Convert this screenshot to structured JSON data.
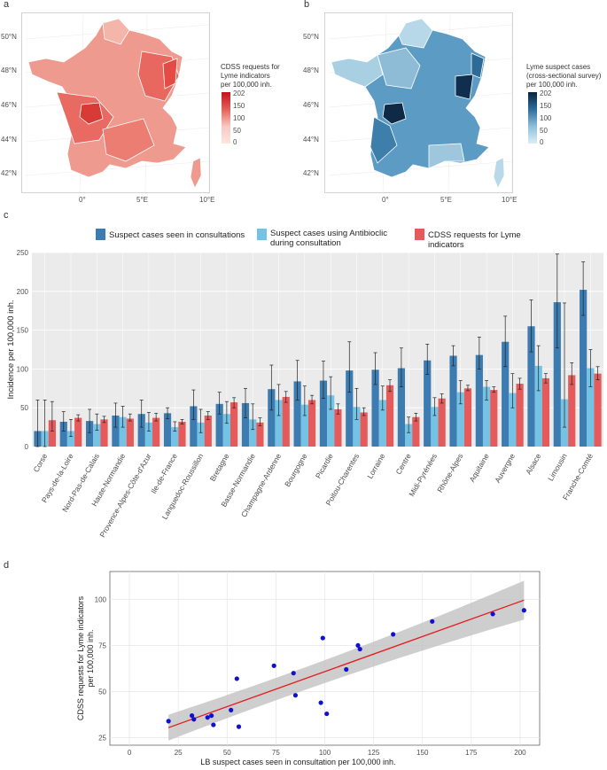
{
  "panels": {
    "a": "a",
    "b": "b",
    "c": "c",
    "d": "d"
  },
  "colors": {
    "consult": "#3d7cb1",
    "antibio": "#74c3e4",
    "cdss": "#e55b5b",
    "reg_line": "#e41a1c",
    "points": "#1010d0",
    "ci_band": "#bdbdbd",
    "panel_bg": "#ebebeb"
  },
  "map_a": {
    "legend_title_1": "CDSS requests for",
    "legend_title_2": "Lyme indicators",
    "legend_title_3": "per 100,000 inh.",
    "legend_ticks": [
      "202",
      "150",
      "100",
      "50",
      "0"
    ],
    "lat_labels": [
      "50°N",
      "48°N",
      "46°N",
      "44°N",
      "42°N"
    ],
    "lon_labels": [
      "0°",
      "5°E",
      "10°E"
    ]
  },
  "map_b": {
    "legend_title_1": "Lyme suspect cases",
    "legend_title_2": "(cross-sectional survey)",
    "legend_title_3": "per 100,000 inh.",
    "legend_ticks": [
      "202",
      "150",
      "100",
      "50",
      "0"
    ],
    "lat_labels": [
      "50°N",
      "48°N",
      "46°N",
      "44°N",
      "42°N"
    ],
    "lon_labels": [
      "0°",
      "5°E",
      "10°E"
    ]
  },
  "legend_c": {
    "consult": "Suspect cases seen in consultations",
    "antibio_1": "Suspect cases using Antibioclic",
    "antibio_2": "during consultation",
    "cdss": "CDSS requests for Lyme indicators"
  },
  "chart_data": [
    {
      "type": "bar",
      "ylabel": "Incidence per 100,000 inh.",
      "ylim": [
        0,
        250
      ],
      "yticks": [
        0,
        50,
        100,
        150,
        200,
        250
      ],
      "categories": [
        "Corse",
        "Pays-de-la-Loire",
        "Nord-Pas-de-Calais",
        "Haute-Normandie",
        "Provence-Alpes-Côte-d'Azur",
        "Ile-de-France",
        "Languedoc-Roussillon",
        "Bretagne",
        "Basse-Normandie",
        "Champagne-Ardenne",
        "Bourgogne",
        "Picardie",
        "Poitou-Charentes",
        "Lorraine",
        "Centre",
        "Midi-Pyrénées",
        "Rhône-Alpes",
        "Aquitaine",
        "Auvergne",
        "Alsace",
        "Limousin",
        "Franche-Comté"
      ],
      "series": [
        {
          "name": "Suspect cases seen in consultations",
          "values": [
            20,
            32,
            33,
            40,
            42,
            43,
            52,
            55,
            56,
            74,
            84,
            85,
            98,
            99,
            101,
            111,
            117,
            118,
            135,
            155,
            186,
            202
          ],
          "lower": [
            0,
            20,
            18,
            25,
            25,
            36,
            35,
            42,
            37,
            47,
            60,
            62,
            70,
            80,
            77,
            93,
            104,
            100,
            103,
            122,
            127,
            169
          ],
          "upper": [
            60,
            45,
            48,
            56,
            60,
            50,
            73,
            70,
            75,
            105,
            111,
            110,
            135,
            121,
            127,
            132,
            130,
            141,
            168,
            189,
            248,
            238
          ]
        },
        {
          "name": "Suspect cases using Antibioclic during consultation",
          "values": [
            20,
            20,
            29,
            38,
            31,
            25,
            31,
            42,
            35,
            60,
            54,
            66,
            51,
            60,
            29,
            51,
            70,
            77,
            69,
            104,
            61,
            101
          ],
          "lower": [
            0,
            13,
            21,
            25,
            20,
            20,
            18,
            30,
            22,
            40,
            40,
            48,
            35,
            47,
            18,
            40,
            55,
            60,
            50,
            72,
            25,
            77
          ],
          "upper": [
            60,
            35,
            42,
            52,
            44,
            32,
            48,
            58,
            55,
            80,
            78,
            90,
            75,
            78,
            38,
            63,
            85,
            85,
            94,
            130,
            185,
            125
          ]
        },
        {
          "name": "CDSS requests for Lyme indicators",
          "values": [
            34,
            37,
            35,
            36,
            37,
            32,
            40,
            57,
            31,
            64,
            60,
            48,
            44,
            79,
            38,
            62,
            75,
            73,
            81,
            88,
            92,
            94
          ],
          "lower": [
            20,
            33,
            31,
            33,
            33,
            29,
            35,
            50,
            27,
            57,
            55,
            42,
            40,
            71,
            33,
            56,
            72,
            70,
            74,
            82,
            80,
            86
          ],
          "upper": [
            58,
            41,
            39,
            42,
            43,
            35,
            45,
            63,
            37,
            71,
            66,
            55,
            50,
            86,
            43,
            68,
            79,
            77,
            88,
            94,
            108,
            103
          ]
        }
      ]
    },
    {
      "type": "scatter",
      "xlabel": "LB suspect cases seen in consultation per 100,000 inh.",
      "ylabel_1": "CDSS requests for Lyme indicators",
      "ylabel_2": "per 100,000 inh.",
      "xlim": [
        -10,
        210
      ],
      "ylim": [
        21,
        115
      ],
      "xticks": [
        0,
        25,
        50,
        75,
        100,
        125,
        150,
        175,
        200
      ],
      "yticks": [
        25,
        50,
        75,
        100
      ],
      "points": [
        [
          20,
          34
        ],
        [
          32,
          37
        ],
        [
          33,
          35
        ],
        [
          40,
          36
        ],
        [
          42,
          37
        ],
        [
          43,
          32
        ],
        [
          52,
          40
        ],
        [
          55,
          57
        ],
        [
          56,
          31
        ],
        [
          74,
          64
        ],
        [
          84,
          60
        ],
        [
          85,
          48
        ],
        [
          98,
          44
        ],
        [
          99,
          79
        ],
        [
          101,
          38
        ],
        [
          111,
          62
        ],
        [
          117,
          75
        ],
        [
          118,
          73
        ],
        [
          135,
          81
        ],
        [
          155,
          88
        ],
        [
          186,
          92
        ],
        [
          202,
          94
        ]
      ],
      "regression": {
        "x0": 20,
        "y0": 30.5,
        "x1": 202,
        "y1": 99.5
      },
      "ci": {
        "lo0": 23.5,
        "hi0": 37.5,
        "lo1": 89,
        "hi1": 110
      }
    }
  ]
}
